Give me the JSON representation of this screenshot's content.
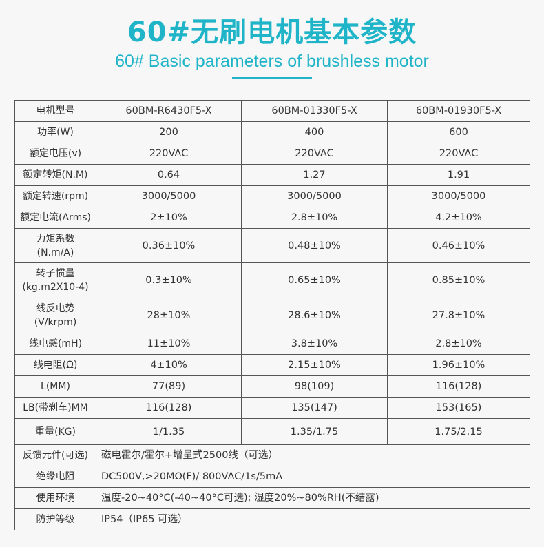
{
  "header": {
    "title_cn": "60#无刷电机基本参数",
    "title_en": "60# Basic parameters of brushless motor"
  },
  "table": {
    "rows": [
      {
        "label": "电机型号",
        "values": [
          "60BM-R6430F5-X",
          "60BM-01330F5-X",
          "60BM-01930F5-X"
        ]
      },
      {
        "label": "功率(W)",
        "values": [
          "200",
          "400",
          "600"
        ]
      },
      {
        "label": "额定电压(v)",
        "values": [
          "220VAC",
          "220VAC",
          "220VAC"
        ]
      },
      {
        "label": "额定转矩(N.M)",
        "values": [
          "0.64",
          "1.27",
          "1.91"
        ]
      },
      {
        "label": "额定转速(rpm)",
        "values": [
          "3000/5000",
          "3000/5000",
          "3000/5000"
        ]
      },
      {
        "label": "额定电流(Arms)",
        "values": [
          "2±10%",
          "2.8±10%",
          "4.2±10%"
        ]
      },
      {
        "label": "力矩系数",
        "label2": "(N.m/A)",
        "values": [
          "0.36±10%",
          "0.48±10%",
          "0.46±10%"
        ]
      },
      {
        "label": "转子惯量",
        "label2": "(kg.m2X10-4)",
        "values": [
          "0.3±10%",
          "0.65±10%",
          "0.85±10%"
        ]
      },
      {
        "label": "线反电势",
        "label2": "(V/krpm)",
        "values": [
          "28±10%",
          "28.6±10%",
          "27.8±10%"
        ]
      },
      {
        "label": "线电感(mH)",
        "values": [
          "11±10%",
          "3.8±10%",
          "2.8±10%"
        ]
      },
      {
        "label": "线电阻(Ω)",
        "values": [
          "4±10%",
          "2.15±10%",
          "1.96±10%"
        ]
      },
      {
        "label": "L(MM)",
        "values": [
          "77(89)",
          "98(109)",
          "116(128)"
        ]
      },
      {
        "label": "LB(带刹车)MM",
        "values": [
          "116(128)",
          "135(147)",
          "153(165)"
        ]
      },
      {
        "label": "重量(KG)",
        "values": [
          "1/1.35",
          "1.35/1.75",
          "1.75/2.15"
        ]
      }
    ],
    "wide_rows": [
      {
        "label": "反馈元件(可选)",
        "value": "磁电霍尔/霍尔+增量式2500线（可选）"
      },
      {
        "label": "绝缘电阻",
        "value": "DC500V,>20MΩ(F)/ 800VAC/1s/5mA"
      },
      {
        "label": "使用环境",
        "value": "温度-20~40°C(-40~40°C可选); 湿度20%~80%RH(不结露)"
      },
      {
        "label": "防护等级",
        "value": "IP54（IP65 可选）"
      }
    ]
  }
}
